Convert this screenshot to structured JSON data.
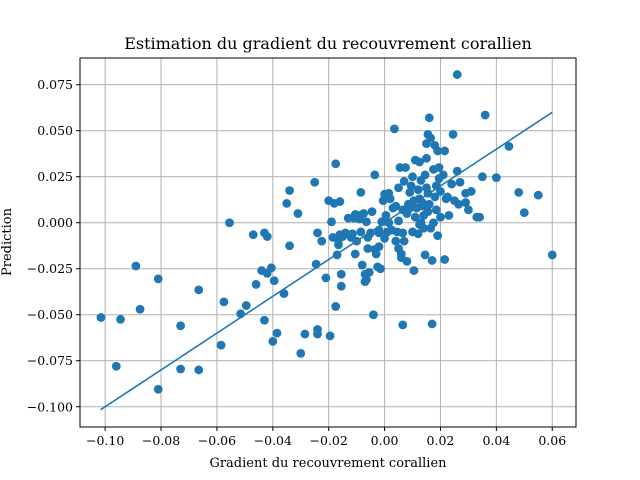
{
  "chart_data": {
    "type": "scatter",
    "title": "Estimation du gradient du recouvrement corallien",
    "xlabel": "Gradient du recouvrement corallien",
    "ylabel": "Prediction",
    "xlim": [
      -0.109,
      0.0685
    ],
    "ylim": [
      -0.111,
      0.0895
    ],
    "xticks": [
      -0.1,
      -0.08,
      -0.06,
      -0.04,
      -0.02,
      0.0,
      0.02,
      0.04,
      0.06
    ],
    "xtick_labels": [
      "−0.10",
      "−0.08",
      "−0.06",
      "−0.04",
      "−0.02",
      "0.00",
      "0.02",
      "0.04",
      "0.06"
    ],
    "yticks": [
      -0.1,
      -0.075,
      -0.05,
      -0.025,
      0.0,
      0.025,
      0.05,
      0.075
    ],
    "ytick_labels": [
      "−0.100",
      "−0.075",
      "−0.050",
      "−0.025",
      "0.000",
      "0.025",
      "0.050",
      "0.075"
    ],
    "grid": true,
    "color": "#1f77b4",
    "fit_line": {
      "x": [
        -0.1016,
        0.06
      ],
      "y": [
        -0.1016,
        0.06
      ]
    },
    "points": [
      [
        -0.1015,
        -0.0515
      ],
      [
        -0.096,
        -0.078
      ],
      [
        -0.0945,
        -0.0525
      ],
      [
        -0.089,
        -0.0235
      ],
      [
        -0.0875,
        -0.047
      ],
      [
        -0.081,
        -0.0305
      ],
      [
        -0.081,
        -0.0905
      ],
      [
        -0.073,
        -0.056
      ],
      [
        -0.073,
        -0.0795
      ],
      [
        -0.0665,
        -0.0365
      ],
      [
        -0.0665,
        -0.08
      ],
      [
        -0.0585,
        -0.0665
      ],
      [
        -0.0575,
        -0.043
      ],
      [
        -0.0555,
        0.0
      ],
      [
        -0.0515,
        -0.0495
      ],
      [
        -0.0495,
        -0.045
      ],
      [
        -0.047,
        -0.0065
      ],
      [
        -0.046,
        -0.0335
      ],
      [
        -0.044,
        -0.026
      ],
      [
        -0.043,
        -0.053
      ],
      [
        -0.043,
        -0.0055
      ],
      [
        -0.042,
        -0.0075
      ],
      [
        -0.042,
        -0.0275
      ],
      [
        -0.0405,
        -0.0245
      ],
      [
        -0.04,
        -0.0645
      ],
      [
        -0.0395,
        -0.0315
      ],
      [
        -0.0385,
        -0.06
      ],
      [
        -0.036,
        -0.0385
      ],
      [
        -0.035,
        0.0105
      ],
      [
        -0.034,
        0.0175
      ],
      [
        -0.034,
        -0.0125
      ],
      [
        -0.031,
        0.005
      ],
      [
        -0.03,
        -0.071
      ],
      [
        -0.0285,
        -0.0605
      ],
      [
        -0.025,
        0.022
      ],
      [
        -0.0245,
        -0.0225
      ],
      [
        -0.024,
        -0.058
      ],
      [
        -0.024,
        -0.0605
      ],
      [
        -0.024,
        -0.0055
      ],
      [
        -0.0225,
        -0.01
      ],
      [
        -0.02,
        0.012
      ],
      [
        -0.0195,
        -0.0615
      ],
      [
        -0.019,
        0.0005
      ],
      [
        -0.0185,
        -0.008
      ],
      [
        -0.018,
        0.0105
      ],
      [
        -0.0175,
        0.032
      ],
      [
        -0.0175,
        -0.0455
      ],
      [
        -0.017,
        -0.0175
      ],
      [
        -0.0165,
        -0.012
      ],
      [
        -0.0165,
        -0.0095
      ],
      [
        -0.016,
        -0.0065
      ],
      [
        -0.016,
        0.0115
      ],
      [
        -0.0155,
        -0.028
      ],
      [
        -0.0155,
        -0.0345
      ],
      [
        -0.015,
        -0.0075
      ],
      [
        -0.014,
        -0.0055
      ],
      [
        -0.013,
        0.0025
      ],
      [
        -0.012,
        -0.008
      ],
      [
        -0.0115,
        -0.006
      ],
      [
        -0.011,
        0.0025
      ],
      [
        -0.0105,
        -0.017
      ],
      [
        -0.01,
        -0.01
      ],
      [
        -0.0095,
        0.004
      ],
      [
        -0.009,
        0.002
      ],
      [
        -0.0085,
        0.0165
      ],
      [
        -0.0085,
        -0.005
      ],
      [
        -0.008,
        -0.023
      ],
      [
        -0.0075,
        0.005
      ],
      [
        -0.007,
        -0.028
      ],
      [
        -0.007,
        -0.032
      ],
      [
        -0.0065,
        -0.031
      ],
      [
        -0.0065,
        0.0005
      ],
      [
        -0.006,
        -0.008
      ],
      [
        -0.006,
        -0.014
      ],
      [
        -0.0055,
        -0.027
      ],
      [
        -0.005,
        -0.0055
      ],
      [
        -0.0045,
        0.006
      ],
      [
        -0.004,
        -0.05
      ],
      [
        -0.0035,
        0.026
      ],
      [
        -0.0035,
        -0.0145
      ],
      [
        -0.003,
        -0.017
      ],
      [
        -0.0025,
        -0.024
      ],
      [
        -0.002,
        -0.004
      ],
      [
        -0.002,
        -0.013
      ],
      [
        -0.0015,
        -0.025
      ],
      [
        -0.001,
        0.0005
      ],
      [
        -0.0005,
        0.012
      ],
      [
        0.0,
        0.0155
      ],
      [
        0.0,
        -0.0085
      ],
      [
        0.0005,
        0.004
      ],
      [
        0.001,
        -0.005
      ],
      [
        0.0015,
        0.0
      ],
      [
        0.0015,
        0.016
      ],
      [
        0.002,
        0.013
      ],
      [
        0.0025,
        -0.004
      ],
      [
        0.003,
        0.008
      ],
      [
        0.0035,
        0.051
      ],
      [
        0.004,
        -0.01
      ],
      [
        0.0045,
        -0.005
      ],
      [
        0.005,
        0.001
      ],
      [
        0.005,
        -0.014
      ],
      [
        0.005,
        0.019
      ],
      [
        0.0055,
        0.03
      ],
      [
        0.006,
        -0.017
      ],
      [
        0.006,
        -0.019
      ],
      [
        0.0065,
        -0.0055
      ],
      [
        0.0065,
        0.007
      ],
      [
        0.007,
        0.0225
      ],
      [
        0.007,
        -0.01
      ],
      [
        0.0075,
        0.03
      ],
      [
        0.008,
        0.005
      ],
      [
        0.008,
        -0.021
      ],
      [
        0.0085,
        0.01
      ],
      [
        0.009,
        0.008
      ],
      [
        0.009,
        0.0165
      ],
      [
        0.0095,
        0.02
      ],
      [
        0.01,
        0.025
      ],
      [
        0.01,
        -0.005
      ],
      [
        0.0105,
        0.012
      ],
      [
        0.0105,
        -0.026
      ],
      [
        0.011,
        0.003
      ],
      [
        0.011,
        0.034
      ],
      [
        0.0115,
        0.008
      ],
      [
        0.012,
        -0.006
      ],
      [
        0.012,
        0.018
      ],
      [
        0.0125,
        0.013
      ],
      [
        0.0125,
        0.033
      ],
      [
        0.013,
        0.023
      ],
      [
        0.013,
        0.0
      ],
      [
        0.0135,
        0.011
      ],
      [
        0.0135,
        0.009
      ],
      [
        0.014,
        -0.003
      ],
      [
        0.014,
        0.004
      ],
      [
        0.0145,
        0.026
      ],
      [
        0.0145,
        -0.0175
      ],
      [
        0.015,
        0.043
      ],
      [
        0.015,
        0.035
      ],
      [
        0.015,
        0.019
      ],
      [
        0.0155,
        0.048
      ],
      [
        0.0155,
        0.016
      ],
      [
        0.0155,
        0.006
      ],
      [
        0.016,
        0.057
      ],
      [
        0.016,
        0.01
      ],
      [
        0.0165,
        0.046
      ],
      [
        0.0165,
        -0.003
      ],
      [
        0.017,
        -0.055
      ],
      [
        0.017,
        -0.0205
      ],
      [
        0.0175,
        0.029
      ],
      [
        0.0175,
        0.0
      ],
      [
        0.018,
        0.042
      ],
      [
        0.018,
        0.014
      ],
      [
        0.0185,
        0.02
      ],
      [
        0.0185,
        0.007
      ],
      [
        0.019,
        0.039
      ],
      [
        0.019,
        -0.007
      ],
      [
        0.0195,
        0.03
      ],
      [
        0.0195,
        0.024
      ],
      [
        0.02,
        0.017
      ],
      [
        0.02,
        0.003
      ],
      [
        0.021,
        0.026
      ],
      [
        0.0215,
        0.039
      ],
      [
        0.0215,
        -0.02
      ],
      [
        0.022,
        0.013
      ],
      [
        0.023,
        0.004
      ],
      [
        0.024,
        0.021
      ],
      [
        0.0245,
        0.048
      ],
      [
        0.025,
        0.012
      ],
      [
        0.026,
        0.0805
      ],
      [
        0.026,
        0.028
      ],
      [
        0.0265,
        0.01
      ],
      [
        0.027,
        0.022
      ],
      [
        0.029,
        0.016
      ],
      [
        0.029,
        0.011
      ],
      [
        0.03,
        0.007
      ],
      [
        0.031,
        0.017
      ],
      [
        0.033,
        0.003
      ],
      [
        0.034,
        0.003
      ],
      [
        0.035,
        0.025
      ],
      [
        0.036,
        0.0585
      ],
      [
        0.04,
        0.0245
      ],
      [
        0.0445,
        0.0415
      ],
      [
        0.048,
        0.0165
      ],
      [
        0.05,
        0.0055
      ],
      [
        0.055,
        0.015
      ],
      [
        0.06,
        -0.0175
      ],
      [
        0.0065,
        -0.0555
      ],
      [
        -0.002,
        -0.0055
      ],
      [
        -0.0105,
        0.0045
      ],
      [
        0.004,
        0.009
      ],
      [
        0.0125,
        -0.001
      ],
      [
        0.0225,
        0.014
      ],
      [
        -0.021,
        -0.03
      ]
    ]
  }
}
